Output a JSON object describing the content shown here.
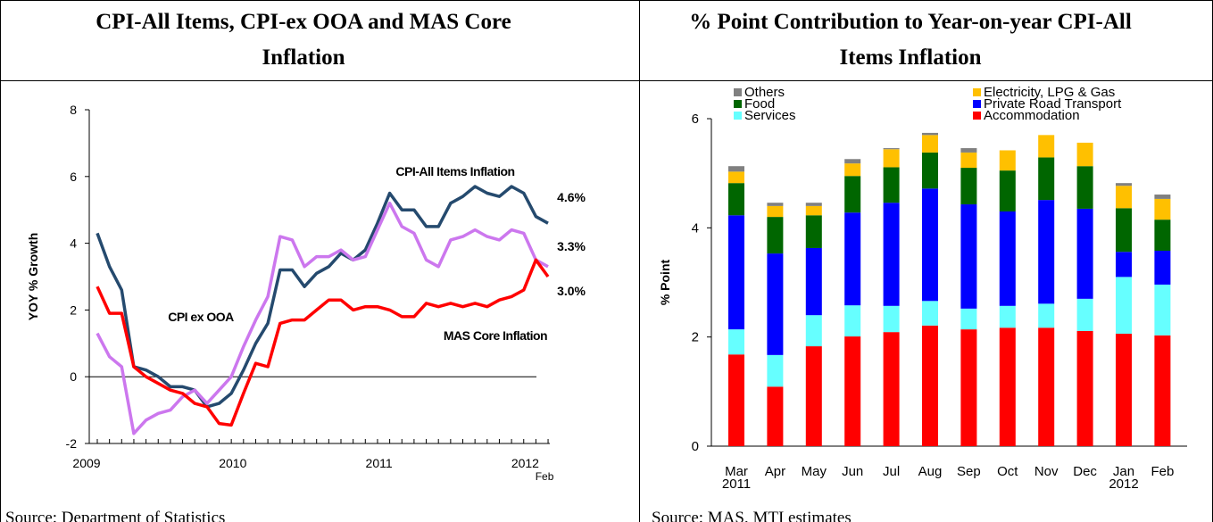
{
  "chart_data": [
    {
      "type": "line",
      "title": "CPI-All Items, CPI-ex OOA and MAS Core Inflation",
      "ylabel": "YOY % Growth",
      "source": "Source: Department of Statistics",
      "categories": [
        "2009",
        null,
        null,
        null,
        null,
        null,
        null,
        null,
        null,
        null,
        null,
        null,
        "2010",
        null,
        null,
        null,
        null,
        null,
        null,
        null,
        null,
        null,
        null,
        null,
        "2011",
        null,
        null,
        null,
        null,
        null,
        null,
        null,
        null,
        null,
        null,
        null,
        "2012",
        "Feb"
      ],
      "ylim": [
        -2,
        8
      ],
      "yticks": [
        -2,
        0,
        2,
        4,
        6,
        8
      ],
      "series": [
        {
          "name": "CPI-All Items Inflation",
          "color": "#254a6e",
          "values": [
            4.3,
            3.3,
            2.6,
            0.3,
            0.2,
            0.0,
            -0.3,
            -0.3,
            -0.4,
            -0.9,
            -0.8,
            -0.5,
            0.2,
            1.0,
            1.6,
            3.2,
            3.2,
            2.7,
            3.1,
            3.3,
            3.7,
            3.5,
            3.8,
            4.6,
            5.5,
            5.0,
            5.0,
            4.5,
            4.5,
            5.2,
            5.4,
            5.7,
            5.5,
            5.4,
            5.7,
            5.5,
            4.8,
            4.6
          ],
          "value_labels": [
            null,
            null,
            null,
            null,
            null,
            null,
            null,
            null,
            null,
            null,
            null,
            null,
            null,
            null,
            null,
            null,
            null,
            null,
            null,
            null,
            null,
            null,
            null,
            null,
            null,
            null,
            null,
            null,
            null,
            null,
            null,
            null,
            null,
            null,
            null,
            null,
            null,
            "4.6%"
          ]
        },
        {
          "name": "CPI ex OOA",
          "color": "#cc77ee",
          "values": [
            1.3,
            0.6,
            0.3,
            -1.7,
            -1.3,
            -1.1,
            -1.0,
            -0.6,
            -0.4,
            -0.8,
            -0.4,
            0.0,
            0.9,
            1.7,
            2.4,
            4.2,
            4.1,
            3.3,
            3.6,
            3.6,
            3.8,
            3.5,
            3.6,
            4.4,
            5.2,
            4.5,
            4.3,
            3.5,
            3.3,
            4.1,
            4.2,
            4.4,
            4.2,
            4.1,
            4.4,
            4.3,
            3.5,
            3.3
          ],
          "value_labels": [
            null,
            null,
            null,
            null,
            null,
            null,
            null,
            null,
            null,
            null,
            null,
            null,
            null,
            null,
            null,
            null,
            null,
            null,
            null,
            null,
            null,
            null,
            null,
            null,
            null,
            null,
            null,
            null,
            null,
            null,
            null,
            null,
            null,
            null,
            null,
            null,
            null,
            "3.3%"
          ]
        },
        {
          "name": "MAS Core Inflation",
          "color": "#ff0000",
          "values": [
            2.7,
            1.9,
            1.9,
            0.3,
            0.0,
            -0.2,
            -0.4,
            -0.5,
            -0.8,
            -0.9,
            -1.4,
            -1.45,
            -0.5,
            0.4,
            0.3,
            1.6,
            1.7,
            1.7,
            2.0,
            2.3,
            2.3,
            2.0,
            2.1,
            2.1,
            2.0,
            1.8,
            1.8,
            2.2,
            2.1,
            2.2,
            2.1,
            2.2,
            2.1,
            2.3,
            2.4,
            2.6,
            3.5,
            3.0
          ],
          "value_labels": [
            null,
            null,
            null,
            null,
            null,
            null,
            null,
            null,
            null,
            null,
            null,
            null,
            null,
            null,
            null,
            null,
            null,
            null,
            null,
            null,
            null,
            null,
            null,
            null,
            null,
            null,
            null,
            null,
            null,
            null,
            null,
            null,
            null,
            null,
            null,
            null,
            null,
            "3.0%"
          ]
        }
      ]
    },
    {
      "type": "stacked_bar",
      "title": "% Point Contribution to Year-on-year CPI-All Items Inflation",
      "ylabel": "% Point",
      "source": "Source: MAS, MTI estimates",
      "categories": [
        "Mar",
        "Apr",
        "May",
        "Jun",
        "Jul",
        "Aug",
        "Sep",
        "Oct",
        "Nov",
        "Dec",
        "Jan",
        "Feb"
      ],
      "category_years": [
        "2011",
        null,
        null,
        null,
        null,
        null,
        null,
        null,
        null,
        null,
        "2012",
        null
      ],
      "ylim": [
        0,
        6
      ],
      "yticks": [
        0,
        2,
        4,
        6
      ],
      "series": [
        {
          "name": "Accommodation",
          "color": "#ff0000",
          "values": [
            1.68,
            1.09,
            1.83,
            2.01,
            2.09,
            2.21,
            2.14,
            2.17,
            2.17,
            2.11,
            2.06,
            2.03
          ]
        },
        {
          "name": "Services",
          "color": "#66ffff",
          "values": [
            0.46,
            0.58,
            0.57,
            0.57,
            0.48,
            0.45,
            0.38,
            0.4,
            0.44,
            0.59,
            1.04,
            0.93
          ]
        },
        {
          "name": "Private Road Transport",
          "color": "#0000ff",
          "values": [
            2.09,
            1.86,
            1.23,
            1.7,
            1.89,
            2.06,
            1.91,
            1.73,
            1.9,
            1.65,
            0.46,
            0.62
          ]
        },
        {
          "name": "Food",
          "color": "#006600",
          "values": [
            0.59,
            0.67,
            0.6,
            0.67,
            0.65,
            0.66,
            0.67,
            0.75,
            0.78,
            0.78,
            0.8,
            0.57
          ]
        },
        {
          "name": "Electricity, LPG & Gas",
          "color": "#ffc000",
          "values": [
            0.21,
            0.2,
            0.17,
            0.23,
            0.33,
            0.32,
            0.28,
            0.37,
            0.41,
            0.43,
            0.41,
            0.38
          ]
        },
        {
          "name": "Others",
          "color": "#808080",
          "values": [
            0.1,
            0.06,
            0.06,
            0.08,
            0.02,
            0.04,
            0.08,
            0,
            0,
            0,
            0.05,
            0.08
          ]
        }
      ]
    }
  ]
}
